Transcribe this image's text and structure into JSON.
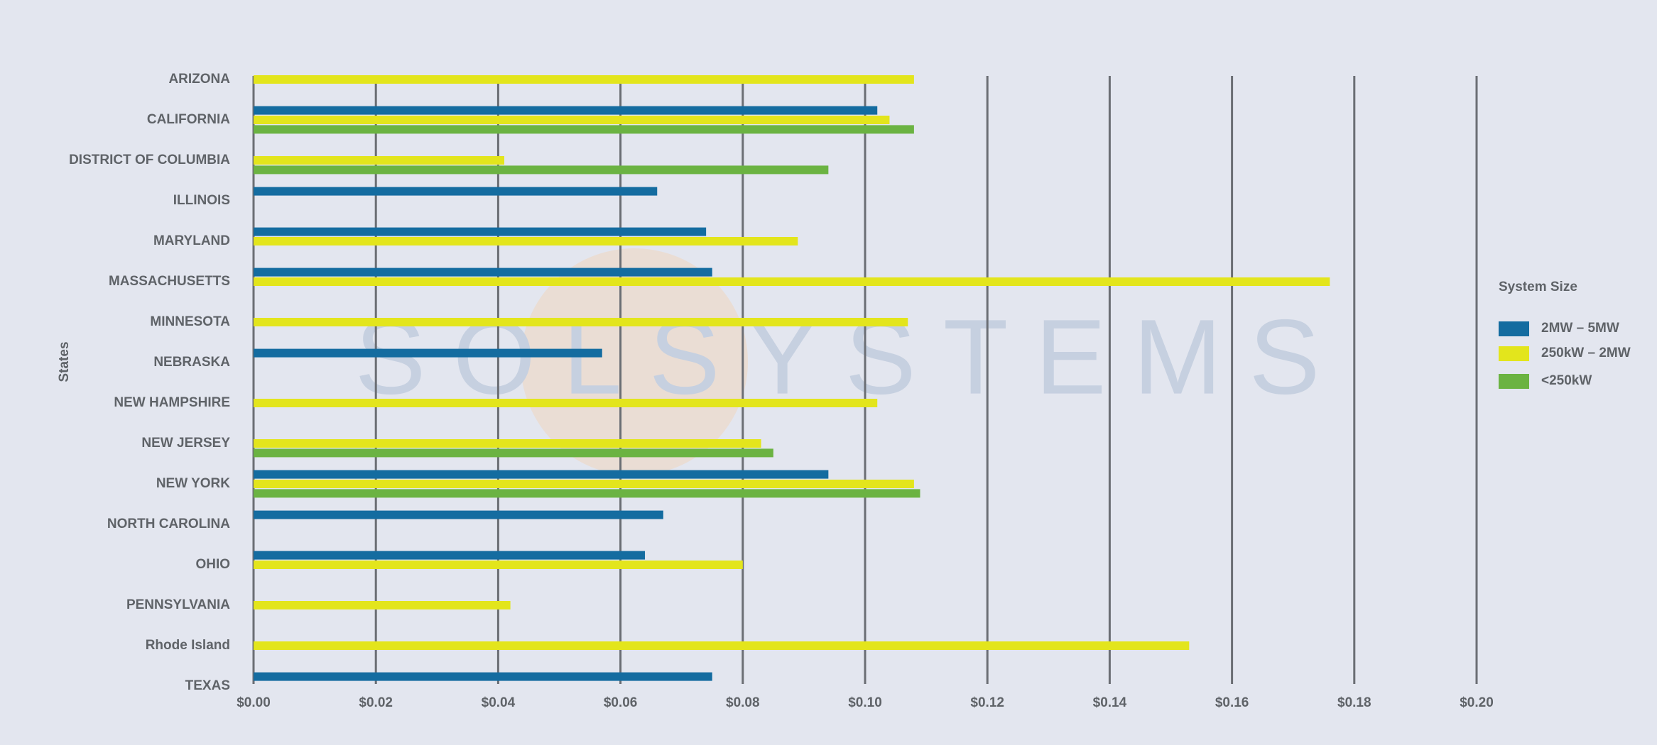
{
  "chart_data": {
    "type": "hbar",
    "watermark": "SOLSYSTEMS",
    "y_label": "States",
    "legend_title": "System Size",
    "legend": "right",
    "grid": true,
    "categories": [
      "ARIZONA",
      "CALIFORNIA",
      "DISTRICT OF COLUMBIA",
      "ILLINOIS",
      "MARYLAND",
      "MASSACHUSETTS",
      "MINNESOTA",
      "NEBRASKA",
      "NEW HAMPSHIRE",
      "NEW JERSEY",
      "NEW YORK",
      "NORTH CAROLINA",
      "OHIO",
      "PENNSYLVANIA",
      "Rhode Island",
      "TEXAS"
    ],
    "series": [
      {
        "name": "2MW – 5MW",
        "color": "#146ca0",
        "values": [
          null,
          0.102,
          null,
          0.066,
          0.074,
          0.075,
          null,
          0.057,
          null,
          null,
          0.094,
          0.067,
          0.064,
          null,
          null,
          0.075
        ]
      },
      {
        "name": "250kW – 2MW",
        "color": "#e3e51c",
        "values": [
          0.108,
          0.104,
          0.041,
          null,
          0.089,
          0.176,
          0.107,
          null,
          0.102,
          0.083,
          0.108,
          null,
          0.08,
          0.042,
          0.153,
          null
        ]
      },
      {
        "name": "<250kW",
        "color": "#6bb342",
        "values": [
          null,
          0.108,
          0.094,
          null,
          null,
          null,
          null,
          null,
          null,
          0.085,
          0.109,
          null,
          null,
          null,
          null,
          null
        ]
      }
    ],
    "xlim": [
      0,
      0.2
    ],
    "xticks": [
      {
        "value": 0,
        "label": "$0.00"
      },
      {
        "value": 0.02,
        "label": "$0.02"
      },
      {
        "value": 0.04,
        "label": "$0.04"
      },
      {
        "value": 0.06,
        "label": "$0.06"
      },
      {
        "value": 0.08,
        "label": "$0.08"
      },
      {
        "value": 0.1,
        "label": "$0.10"
      },
      {
        "value": 0.12,
        "label": "$0.12"
      },
      {
        "value": 0.14,
        "label": "$0.14"
      },
      {
        "value": 0.16,
        "label": "$0.16"
      },
      {
        "value": 0.18,
        "label": "$0.18"
      },
      {
        "value": 0.2,
        "label": "$0.20"
      }
    ]
  }
}
